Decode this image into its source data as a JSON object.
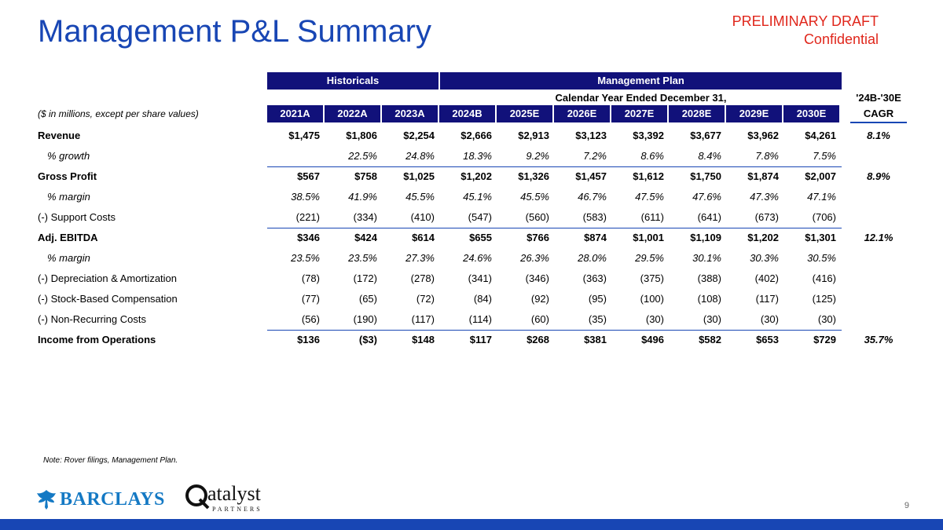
{
  "title": "Management P&L Summary",
  "draft": {
    "line1": "PRELIMINARY DRAFT",
    "line2": "Confidential"
  },
  "header": {
    "historicals": "Historicals",
    "management_plan": "Management Plan",
    "calendar": "Calendar Year Ended December 31,",
    "cagr_top": "'24B-'30E",
    "cagr_bottom": "CAGR",
    "units": "($ in millions, except per share values)",
    "years": [
      "2021A",
      "2022A",
      "2023A",
      "2024B",
      "2025E",
      "2026E",
      "2027E",
      "2028E",
      "2029E",
      "2030E"
    ]
  },
  "rows": [
    {
      "label": "Revenue",
      "style": "bold",
      "values": [
        "$1,475",
        "$1,806",
        "$2,254",
        "$2,666",
        "$2,913",
        "$3,123",
        "$3,392",
        "$3,677",
        "$3,962",
        "$4,261"
      ],
      "cagr": "8.1%"
    },
    {
      "label": "% growth",
      "style": "sub",
      "values": [
        "",
        "22.5%",
        "24.8%",
        "18.3%",
        "9.2%",
        "7.2%",
        "8.6%",
        "8.4%",
        "7.8%",
        "7.5%"
      ],
      "cagr": ""
    },
    {
      "label": "Gross Profit",
      "style": "bold",
      "values": [
        "$567",
        "$758",
        "$1,025",
        "$1,202",
        "$1,326",
        "$1,457",
        "$1,612",
        "$1,750",
        "$1,874",
        "$2,007"
      ],
      "cagr": "8.9%"
    },
    {
      "label": "% margin",
      "style": "sub",
      "values": [
        "38.5%",
        "41.9%",
        "45.5%",
        "45.1%",
        "45.5%",
        "46.7%",
        "47.5%",
        "47.6%",
        "47.3%",
        "47.1%"
      ],
      "cagr": ""
    },
    {
      "label": "(-) Support Costs",
      "style": "plain",
      "values": [
        "(221)",
        "(334)",
        "(410)",
        "(547)",
        "(560)",
        "(583)",
        "(611)",
        "(641)",
        "(673)",
        "(706)"
      ],
      "cagr": ""
    },
    {
      "label": "Adj. EBITDA",
      "style": "bold",
      "values": [
        "$346",
        "$424",
        "$614",
        "$655",
        "$766",
        "$874",
        "$1,001",
        "$1,109",
        "$1,202",
        "$1,301"
      ],
      "cagr": "12.1%"
    },
    {
      "label": "% margin",
      "style": "sub",
      "values": [
        "23.5%",
        "23.5%",
        "27.3%",
        "24.6%",
        "26.3%",
        "28.0%",
        "29.5%",
        "30.1%",
        "30.3%",
        "30.5%"
      ],
      "cagr": ""
    },
    {
      "label": "(-) Depreciation & Amortization",
      "style": "plain",
      "values": [
        "(78)",
        "(172)",
        "(278)",
        "(341)",
        "(346)",
        "(363)",
        "(375)",
        "(388)",
        "(402)",
        "(416)"
      ],
      "cagr": ""
    },
    {
      "label": "(-) Stock-Based Compensation",
      "style": "plain",
      "values": [
        "(77)",
        "(65)",
        "(72)",
        "(84)",
        "(92)",
        "(95)",
        "(100)",
        "(108)",
        "(117)",
        "(125)"
      ],
      "cagr": ""
    },
    {
      "label": "(-) Non-Recurring Costs",
      "style": "plain",
      "values": [
        "(56)",
        "(190)",
        "(117)",
        "(114)",
        "(60)",
        "(35)",
        "(30)",
        "(30)",
        "(30)",
        "(30)"
      ],
      "cagr": ""
    },
    {
      "label": "Income from Operations",
      "style": "bold",
      "values": [
        "$136",
        "($3)",
        "$148",
        "$117",
        "$268",
        "$381",
        "$496",
        "$582",
        "$653",
        "$729"
      ],
      "cagr": "35.7%"
    }
  ],
  "row_borders": [
    2,
    5,
    10
  ],
  "note": "Note: Rover filings, Management Plan.",
  "page_number": "9",
  "logos": {
    "barclays": "BARCLAYS",
    "qatalyst": "atalyst",
    "qatalyst_sub": "PARTNERS"
  },
  "colors": {
    "title_blue": "#1846b4",
    "header_navy": "#11117a",
    "draft_red": "#e0261b",
    "barclays_blue": "#1479c4"
  }
}
